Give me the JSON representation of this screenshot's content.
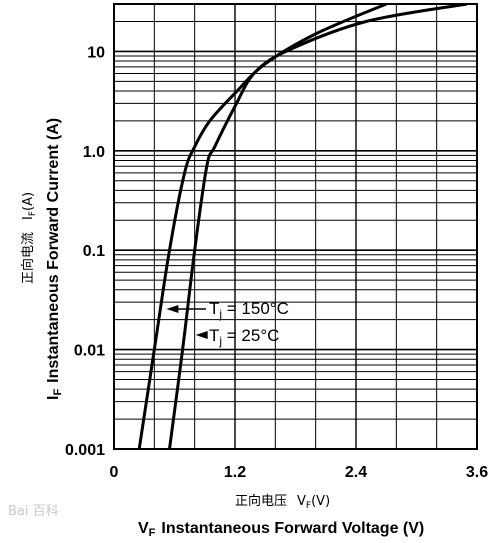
{
  "chart_data": {
    "type": "line",
    "x_axis": {
      "label": "Instantaneous Forward Voltage (V)",
      "symbol": "V",
      "symbol_sub": "F",
      "label_cn": "正向电压",
      "symbol_cn": "V",
      "symbol_cn_sub": "F",
      "unit_cn": "(V)",
      "range": [
        0,
        3.6
      ],
      "ticks": [
        0,
        1.2,
        2.4,
        3.6
      ],
      "tick_labels": [
        "0",
        "1.2",
        "2.4",
        "3.6"
      ]
    },
    "y_axis": {
      "label": "Instantaneous Forward Current (A)",
      "symbol": "I",
      "symbol_sub": "F",
      "label_cn": "正向电流",
      "symbol_cn": "I",
      "symbol_cn_sub": "F",
      "unit_cn": "(A)",
      "scale": "log",
      "range": [
        0.001,
        30
      ],
      "ticks": [
        0.001,
        0.01,
        0.1,
        1,
        10
      ],
      "tick_labels": [
        "0.001",
        "0.01",
        "0.1",
        "1.0",
        "10"
      ]
    },
    "grid": true,
    "series": [
      {
        "name": "T_j = 150°C",
        "label_prefix": "T",
        "label_sub": "j",
        "label_suffix": " = 150°C",
        "points": [
          [
            0.25,
            0.001
          ],
          [
            0.4,
            0.01
          ],
          [
            0.55,
            0.1
          ],
          [
            0.7,
            0.6
          ],
          [
            0.8,
            1.1
          ],
          [
            0.95,
            2.0
          ],
          [
            1.2,
            3.8
          ],
          [
            1.5,
            7.5
          ],
          [
            2.0,
            15
          ],
          [
            2.7,
            30
          ]
        ]
      },
      {
        "name": "T_j = 25°C",
        "label_prefix": "T",
        "label_sub": "j",
        "label_suffix": " = 25°C",
        "points": [
          [
            0.55,
            0.001
          ],
          [
            0.68,
            0.01
          ],
          [
            0.8,
            0.1
          ],
          [
            0.92,
            0.7
          ],
          [
            1.0,
            1.1
          ],
          [
            1.2,
            2.8
          ],
          [
            1.4,
            6.2
          ],
          [
            1.75,
            10.5
          ],
          [
            2.5,
            20
          ],
          [
            3.5,
            30
          ]
        ]
      }
    ]
  },
  "watermark": "Bai 百科"
}
